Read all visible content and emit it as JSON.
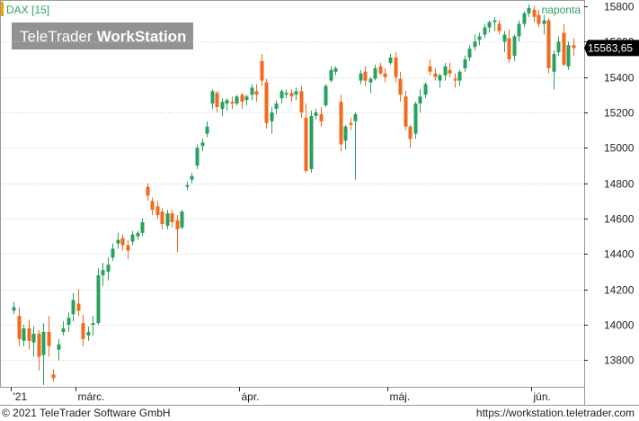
{
  "header": {
    "symbol": "DAX [15]",
    "period": "naponta"
  },
  "watermark": {
    "brand": "TeleTrader",
    "product": "WorkStation"
  },
  "last_price": "15563,65",
  "footer": {
    "copyright": "© 2021 TeleTrader Software GmbH",
    "url": "https://workstation.teletrader.com"
  },
  "colors": {
    "up": "#2aa15f",
    "down": "#f26a1b",
    "grid": "#c8c8c8",
    "accent": "#f5a000"
  },
  "chart_data": {
    "type": "candlestick",
    "y_ticks": [
      "15800",
      "15600",
      "15400",
      "15200",
      "15000",
      "14800",
      "14600",
      "14400",
      "14200",
      "14000",
      "13800"
    ],
    "y_tick_values": [
      15800,
      15600,
      15400,
      15200,
      15000,
      14800,
      14600,
      14400,
      14200,
      14000,
      13800
    ],
    "ylim": [
      13650,
      15830
    ],
    "x_ticks": [
      "'21",
      "márc.",
      "ápr.",
      "máj.",
      "jún."
    ],
    "x_tick_index": [
      0,
      13,
      46,
      76,
      105
    ],
    "candles": [
      [
        14080,
        14130,
        14060,
        14100
      ],
      [
        14050,
        14100,
        13880,
        13920
      ],
      [
        13910,
        14000,
        13880,
        13980
      ],
      [
        13980,
        14030,
        13860,
        13910
      ],
      [
        13900,
        13990,
        13820,
        13950
      ],
      [
        13950,
        13970,
        13740,
        13820
      ],
      [
        13830,
        14010,
        13660,
        13960
      ],
      [
        13960,
        14050,
        13820,
        13880
      ],
      [
        13720,
        13750,
        13680,
        13700
      ],
      [
        13860,
        13920,
        13800,
        13890
      ],
      [
        13960,
        14020,
        13940,
        13980
      ],
      [
        14000,
        14070,
        13960,
        14040
      ],
      [
        14060,
        14180,
        14020,
        14140
      ],
      [
        14120,
        14200,
        14050,
        14080
      ],
      [
        14010,
        14060,
        13880,
        13920
      ],
      [
        13940,
        13990,
        13910,
        13960
      ],
      [
        14000,
        14050,
        13940,
        14010
      ],
      [
        14010,
        14320,
        14000,
        14280
      ],
      [
        14280,
        14350,
        14220,
        14310
      ],
      [
        14300,
        14380,
        14250,
        14340
      ],
      [
        14380,
        14460,
        14360,
        14430
      ],
      [
        14460,
        14520,
        14430,
        14480
      ],
      [
        14490,
        14510,
        14420,
        14450
      ],
      [
        14450,
        14480,
        14370,
        14420
      ],
      [
        14470,
        14530,
        14450,
        14510
      ],
      [
        14500,
        14530,
        14480,
        14520
      ],
      [
        14520,
        14600,
        14500,
        14580
      ],
      [
        14780,
        14800,
        14700,
        14730
      ],
      [
        14700,
        14720,
        14620,
        14650
      ],
      [
        14670,
        14700,
        14600,
        14620
      ],
      [
        14640,
        14660,
        14540,
        14570
      ],
      [
        14560,
        14650,
        14540,
        14630
      ],
      [
        14630,
        14650,
        14550,
        14580
      ],
      [
        14590,
        14620,
        14410,
        14540
      ],
      [
        14550,
        14650,
        14540,
        14640
      ],
      [
        14780,
        14810,
        14760,
        14790
      ],
      [
        14820,
        14860,
        14800,
        14840
      ],
      [
        14900,
        15020,
        14880,
        15000
      ],
      [
        15010,
        15050,
        14980,
        15030
      ],
      [
        15080,
        15150,
        15060,
        15120
      ],
      [
        15250,
        15330,
        15220,
        15320
      ],
      [
        15310,
        15320,
        15200,
        15230
      ],
      [
        15220,
        15280,
        15180,
        15260
      ],
      [
        15250,
        15280,
        15210,
        15270
      ],
      [
        15260,
        15290,
        15220,
        15250
      ],
      [
        15250,
        15300,
        15240,
        15290
      ],
      [
        15300,
        15310,
        15220,
        15260
      ],
      [
        15270,
        15300,
        15240,
        15290
      ],
      [
        15300,
        15360,
        15270,
        15340
      ],
      [
        15320,
        15360,
        15260,
        15300
      ],
      [
        15490,
        15530,
        15350,
        15380
      ],
      [
        15370,
        15390,
        15110,
        15140
      ],
      [
        15150,
        15230,
        15080,
        15200
      ],
      [
        15220,
        15270,
        15190,
        15250
      ],
      [
        15280,
        15330,
        15250,
        15320
      ],
      [
        15300,
        15330,
        15280,
        15310
      ],
      [
        15310,
        15330,
        15260,
        15290
      ],
      [
        15300,
        15340,
        15270,
        15320
      ],
      [
        15320,
        15350,
        15170,
        15200
      ],
      [
        15170,
        15250,
        14860,
        14870
      ],
      [
        14880,
        15210,
        14860,
        15180
      ],
      [
        15180,
        15220,
        15160,
        15200
      ],
      [
        15190,
        15230,
        15120,
        15150
      ],
      [
        15240,
        15360,
        15230,
        15350
      ],
      [
        15380,
        15460,
        15370,
        15440
      ],
      [
        15430,
        15460,
        15410,
        15450
      ],
      [
        15260,
        15300,
        14980,
        15020
      ],
      [
        15040,
        15130,
        14990,
        15120
      ],
      [
        15140,
        15170,
        15100,
        15130
      ],
      [
        15150,
        15200,
        14820,
        15190
      ],
      [
        15380,
        15440,
        15360,
        15420
      ],
      [
        15430,
        15460,
        15350,
        15380
      ],
      [
        15370,
        15400,
        15310,
        15390
      ],
      [
        15390,
        15470,
        15380,
        15450
      ],
      [
        15460,
        15480,
        15410,
        15420
      ],
      [
        15420,
        15450,
        15370,
        15400
      ],
      [
        15480,
        15530,
        15470,
        15510
      ],
      [
        15510,
        15540,
        15370,
        15400
      ],
      [
        15390,
        15430,
        15260,
        15300
      ],
      [
        15290,
        15320,
        15100,
        15120
      ],
      [
        15120,
        15130,
        15000,
        15050
      ],
      [
        15080,
        15260,
        15050,
        15250
      ],
      [
        15250,
        15330,
        15200,
        15290
      ],
      [
        15300,
        15370,
        15280,
        15360
      ],
      [
        15460,
        15500,
        15410,
        15430
      ],
      [
        15420,
        15450,
        15380,
        15400
      ],
      [
        15380,
        15420,
        15340,
        15410
      ],
      [
        15410,
        15480,
        15380,
        15460
      ],
      [
        15440,
        15480,
        15400,
        15420
      ],
      [
        15390,
        15420,
        15340,
        15380
      ],
      [
        15380,
        15440,
        15350,
        15430
      ],
      [
        15450,
        15520,
        15430,
        15500
      ],
      [
        15510,
        15580,
        15490,
        15560
      ],
      [
        15570,
        15640,
        15550,
        15600
      ],
      [
        15610,
        15650,
        15580,
        15630
      ],
      [
        15640,
        15700,
        15620,
        15680
      ],
      [
        15680,
        15720,
        15650,
        15710
      ],
      [
        15710,
        15740,
        15660,
        15720
      ],
      [
        15700,
        15720,
        15640,
        15660
      ],
      [
        15600,
        15660,
        15540,
        15640
      ],
      [
        15620,
        15670,
        15480,
        15500
      ],
      [
        15520,
        15640,
        15490,
        15630
      ],
      [
        15630,
        15720,
        15600,
        15700
      ],
      [
        15700,
        15770,
        15680,
        15760
      ],
      [
        15760,
        15810,
        15740,
        15790
      ],
      [
        15780,
        15800,
        15710,
        15740
      ],
      [
        15750,
        15780,
        15680,
        15700
      ],
      [
        15700,
        15750,
        15640,
        15720
      ],
      [
        15720,
        15730,
        15420,
        15450
      ],
      [
        15430,
        15550,
        15330,
        15530
      ],
      [
        15540,
        15630,
        15520,
        15600
      ],
      [
        15650,
        15700,
        15460,
        15470
      ],
      [
        15460,
        15600,
        15440,
        15580
      ],
      [
        15580,
        15620,
        15520,
        15563.65
      ]
    ]
  }
}
